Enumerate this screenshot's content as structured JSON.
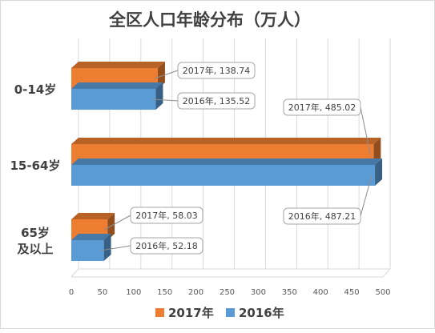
{
  "colors": {
    "series_2017": "#ED7D31",
    "series_2016": "#5B9BD5"
  },
  "chart_data": {
    "type": "bar",
    "orientation": "horizontal",
    "style": "3d-clustered-bar",
    "title": "全区人口年龄分布（万人）",
    "categories": [
      "0-14岁",
      "15-64岁",
      "65岁 及以上"
    ],
    "category_lines": [
      [
        "0-14岁"
      ],
      [
        "15-64岁"
      ],
      [
        "65岁",
        "及以上"
      ]
    ],
    "series": [
      {
        "name": "2017年",
        "values": [
          138.74,
          485.02,
          58.03
        ],
        "color": "#ED7D31"
      },
      {
        "name": "2016年",
        "values": [
          135.52,
          487.21,
          52.18
        ],
        "color": "#5B9BD5"
      }
    ],
    "data_labels": [
      [
        "2017年, 138.74",
        "2017年, 485.02",
        "2017年, 58.03"
      ],
      [
        "2016年, 135.52",
        "2016年, 487.21",
        "2016年, 52.18"
      ]
    ],
    "x_ticks": [
      0,
      50,
      100,
      150,
      200,
      250,
      300,
      350,
      400,
      450,
      500
    ],
    "xlim": [
      0,
      500
    ],
    "grid": true,
    "legend": {
      "position": "bottom",
      "entries": [
        "2017年",
        "2016年"
      ]
    }
  }
}
